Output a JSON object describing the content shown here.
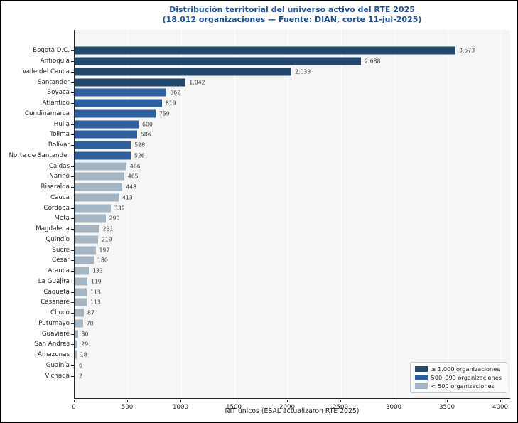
{
  "chart_data": {
    "type": "bar",
    "orientation": "horizontal",
    "title": "Distribución territorial del universo activo del RTE 2025",
    "subtitle": "(18.012 organizaciones — Fuente: DIAN, corte 11-jul-2025)",
    "xlabel": "NIT únicos (ESAL actualizaron RTE 2025)",
    "xlim": [
      0,
      4093
    ],
    "xticks": [
      0,
      500,
      1000,
      1500,
      2000,
      2500,
      3000,
      3500,
      4000
    ],
    "grid": "vertical",
    "categories": [
      "Bogotá D.C.",
      "Antioquia",
      "Valle del Cauca",
      "Santander",
      "Boyacá",
      "Atlántico",
      "Cundinamarca",
      "Huila",
      "Tolima",
      "Bolívar",
      "Norte de Santander",
      "Caldas",
      "Nariño",
      "Risaralda",
      "Cauca",
      "Córdoba",
      "Meta",
      "Magdalena",
      "Quindío",
      "Sucre",
      "Cesar",
      "Arauca",
      "La Guajira",
      "Caquetá",
      "Casanare",
      "Chocó",
      "Putumayo",
      "Guaviare",
      "San Andrés",
      "Amazonas",
      "Guainía",
      "Vichada"
    ],
    "values": [
      3573,
      2688,
      2033,
      1042,
      862,
      819,
      759,
      600,
      586,
      528,
      526,
      486,
      465,
      448,
      413,
      339,
      290,
      231,
      219,
      197,
      180,
      133,
      119,
      113,
      113,
      87,
      78,
      30,
      29,
      18,
      6,
      2
    ],
    "value_labels": [
      "3,573",
      "2,688",
      "2,033",
      "1,042",
      "862",
      "819",
      "759",
      "600",
      "586",
      "528",
      "526",
      "486",
      "465",
      "448",
      "413",
      "339",
      "290",
      "231",
      "219",
      "197",
      "180",
      "133",
      "119",
      "113",
      "113",
      "87",
      "78",
      "30",
      "29",
      "18",
      "6",
      "2"
    ],
    "tiers": [
      "high",
      "high",
      "high",
      "high",
      "mid",
      "mid",
      "mid",
      "mid",
      "mid",
      "mid",
      "mid",
      "low",
      "low",
      "low",
      "low",
      "low",
      "low",
      "low",
      "low",
      "low",
      "low",
      "low",
      "low",
      "low",
      "low",
      "low",
      "low",
      "low",
      "low",
      "low",
      "low",
      "low"
    ],
    "tier_colors": {
      "high": "#24486b",
      "mid": "#2f5f9e",
      "low": "#a4b6c4"
    },
    "legend": {
      "position": "lower-right",
      "entries": [
        {
          "label": "≥ 1.000 organizaciones",
          "tier": "high"
        },
        {
          "label": "500–999 organizaciones",
          "tier": "mid"
        },
        {
          "label": "< 500 organizaciones",
          "tier": "low"
        }
      ]
    }
  },
  "colors": {
    "title": "#1d5296",
    "plot_background": "#f5f5f6",
    "gridline": "#ffffff",
    "spine": "#262626",
    "text": "#262626",
    "value_label": "#404040",
    "legend_background": "#fcfcfc",
    "legend_border": "#c8c8c8",
    "figure_border": "#000000"
  }
}
